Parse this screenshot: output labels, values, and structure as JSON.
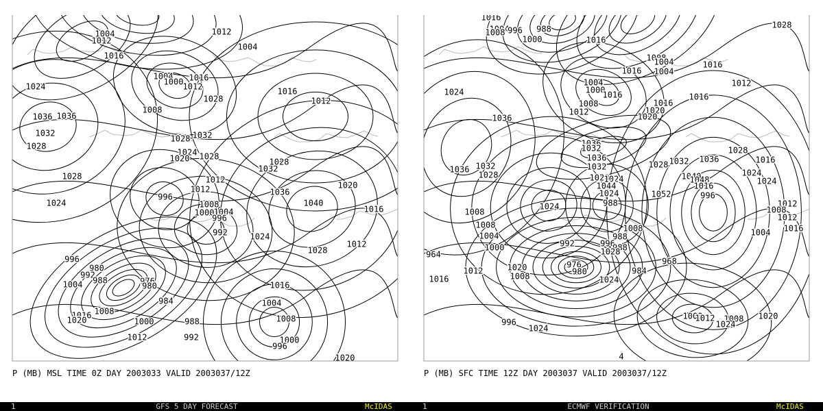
{
  "panels": [
    {
      "caption": "P (MB) MSL TIME 0Z DAY 2003033 VALID 2003037/12Z",
      "contour_labels": [
        1004,
        1012,
        1016,
        1012,
        1004,
        1024,
        1004,
        1000,
        1016,
        1012,
        1008,
        1028,
        1016,
        1012,
        1036,
        1036,
        1032,
        1028,
        1028,
        1032,
        1024,
        1020,
        1028,
        1032,
        1028,
        1028,
        1012,
        1020,
        1024,
        996,
        1012,
        1036,
        1008,
        1040,
        1000,
        1004,
        1016,
        996,
        992,
        1024,
        1012,
        1028,
        996,
        980,
        992,
        988,
        976,
        980,
        1004,
        1016,
        984,
        1004,
        1008,
        1016,
        1020,
        1000,
        988,
        1008,
        1012,
        992,
        1000,
        996,
        1020
      ]
    },
    {
      "caption": "P (MB) SFC TIME 12Z DAY 2003037 VALID 2003037/12Z",
      "contour_labels": [
        1016,
        1004,
        1008,
        996,
        988,
        1000,
        1016,
        1028,
        1008,
        1004,
        1016,
        1004,
        1016,
        1024,
        1004,
        1000,
        1016,
        1012,
        1016,
        1008,
        1016,
        1012,
        1020,
        1020,
        1036,
        1036,
        1032,
        1028,
        1036,
        1032,
        1036,
        1016,
        1028,
        1032,
        1036,
        1028,
        1032,
        1024,
        1040,
        1024,
        1028,
        1024,
        1044,
        1048,
        1016,
        1024,
        1052,
        996,
        988,
        1024,
        1008,
        1012,
        1008,
        1012,
        1008,
        1008,
        1016,
        1004,
        1004,
        988,
        992,
        996,
        1000,
        988,
        1028,
        964,
        976,
        1020,
        968,
        980,
        1008,
        1012,
        984,
        1024,
        1016,
        996,
        1000,
        1012,
        1008,
        1024,
        1020,
        1024,
        4
      ]
    }
  ],
  "footers": [
    {
      "frame": "1",
      "title": "GFS 5 DAY FORECAST",
      "brand": "McIDAS"
    },
    {
      "frame": "1",
      "title": "ECMWF VERIFICATION",
      "brand": "McIDAS"
    }
  ]
}
